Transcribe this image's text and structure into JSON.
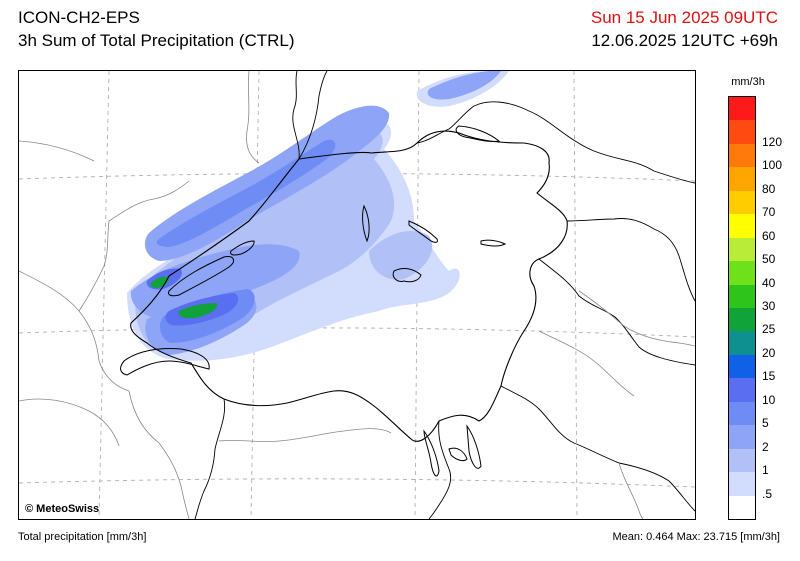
{
  "header": {
    "model": "ICON-CH2-EPS",
    "product": "3h Sum of Total Precipitation (CTRL)",
    "valid_time": "Sun 15 Jun 2025 09UTC",
    "run_time": "12.06.2025 12UTC +69h",
    "valid_color": "#e01010"
  },
  "map": {
    "copyright": "© MeteoSwiss"
  },
  "legend": {
    "unit": "mm/3h",
    "levels": [
      {
        "label": "",
        "color": "#ff1a1a"
      },
      {
        "label": "120",
        "color": "#ff4a12"
      },
      {
        "label": "100",
        "color": "#ff7a0a"
      },
      {
        "label": "80",
        "color": "#ffa500"
      },
      {
        "label": "70",
        "color": "#ffcc00"
      },
      {
        "label": "60",
        "color": "#ffff00"
      },
      {
        "label": "50",
        "color": "#b8ec38"
      },
      {
        "label": "40",
        "color": "#6ee01c"
      },
      {
        "label": "30",
        "color": "#2fc41c"
      },
      {
        "label": "25",
        "color": "#11a23a"
      },
      {
        "label": "20",
        "color": "#0f9090"
      },
      {
        "label": "15",
        "color": "#1060e8"
      },
      {
        "label": "10",
        "color": "#5a6ef2"
      },
      {
        "label": "5",
        "color": "#6e8cf4"
      },
      {
        "label": "2",
        "color": "#8ea4f6"
      },
      {
        "label": "1",
        "color": "#b2c0f8"
      },
      {
        "label": ".5",
        "color": "#d2dcfc"
      },
      {
        "label": "",
        "color": "#ffffff"
      }
    ]
  },
  "footer": {
    "left": "Total precipitation [mm/3h]",
    "right": "Mean:   0.464 Max:  23.715 [mm/3h]"
  }
}
